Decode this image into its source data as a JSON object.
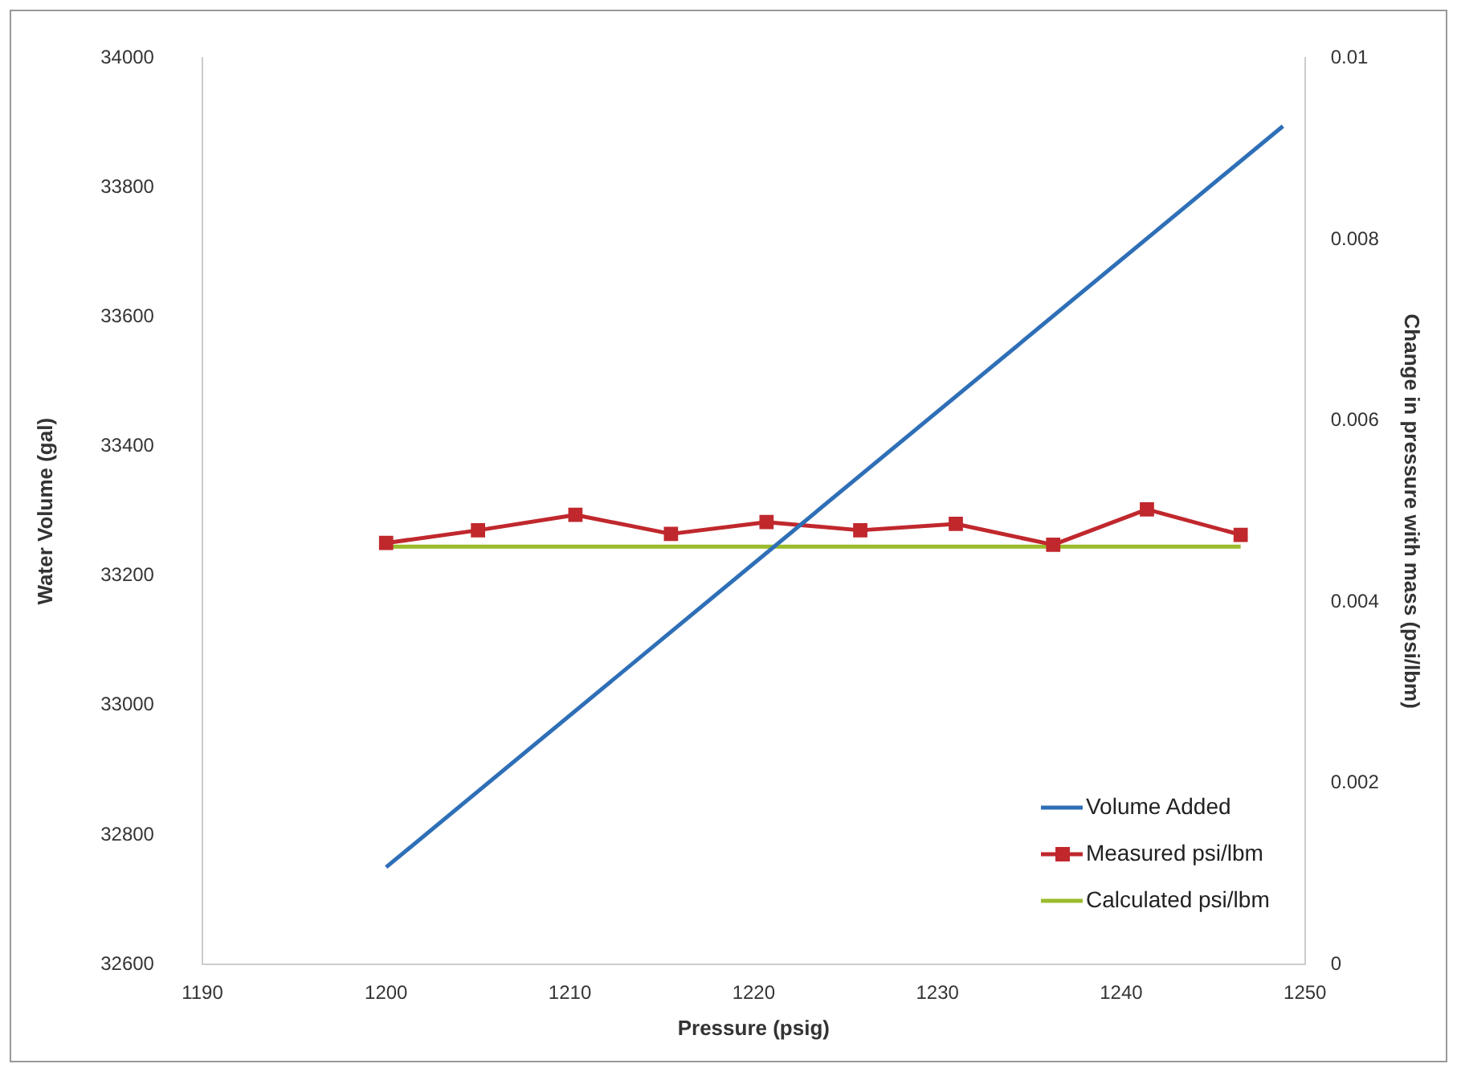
{
  "chart_data": {
    "type": "line",
    "xlabel": "Pressure (psig)",
    "ylabel": "Water Volume (gal)",
    "y2label": "Change in pressure with mass (psi/lbm)",
    "xlim": [
      1190,
      1250
    ],
    "xticks": [
      1190,
      1200,
      1210,
      1220,
      1230,
      1240,
      1250
    ],
    "ylim": [
      32600,
      34000
    ],
    "yticks": [
      32600,
      32800,
      33000,
      33200,
      33400,
      33600,
      33800,
      34000
    ],
    "y2lim": [
      0,
      0.01
    ],
    "y2ticks": [
      0,
      0.002,
      0.004,
      0.006,
      0.008,
      0.01
    ],
    "legend": "bottom right",
    "grid": false,
    "series": [
      {
        "name": "Volume Added",
        "color": "#2e6fb7",
        "marker": "none",
        "x": [
          1200,
          1248.8
        ],
        "values": [
          32750,
          33895
        ]
      },
      {
        "name": "Measured psi/lbm",
        "color": "#c0282d",
        "marker": "square",
        "axis": "y2",
        "x": [
          1200,
          1205,
          1210.3,
          1215.5,
          1220.7,
          1225.8,
          1231,
          1236.3,
          1241.4,
          1246.5
        ],
        "values": [
          0.00465,
          0.00479,
          0.00496,
          0.00475,
          0.00488,
          0.00479,
          0.00486,
          0.00463,
          0.00502,
          0.00474
        ]
      },
      {
        "name": "Calculated psi/lbm",
        "color": "#9bbb2c",
        "marker": "none",
        "axis": "y2",
        "x": [
          1200,
          1246.5
        ],
        "values": [
          0.00461,
          0.00461
        ]
      }
    ]
  }
}
